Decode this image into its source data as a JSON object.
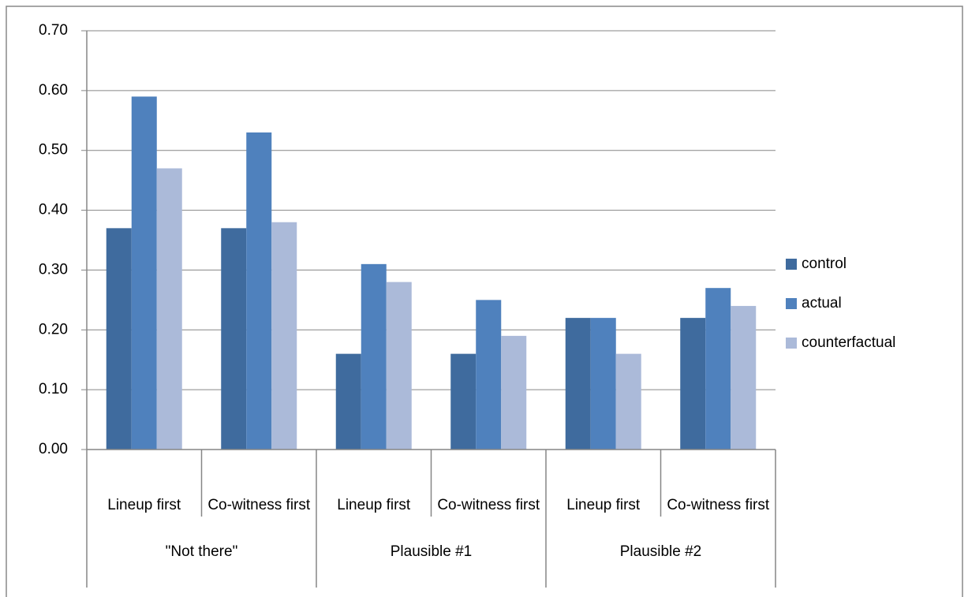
{
  "chart_data": {
    "type": "bar",
    "groups": [
      {
        "name": "\"Not there\"",
        "categories": [
          "Lineup first",
          "Co-witness first"
        ]
      },
      {
        "name": "Plausible #1",
        "categories": [
          "Lineup first",
          "Co-witness first"
        ]
      },
      {
        "name": "Plausible #2",
        "categories": [
          "Lineup first",
          "Co-witness first"
        ]
      }
    ],
    "series": [
      {
        "name": "control",
        "color": "#3f6b9e",
        "values": [
          0.37,
          0.37,
          0.16,
          0.16,
          0.22,
          0.22
        ]
      },
      {
        "name": "actual",
        "color": "#4f81bd",
        "values": [
          0.59,
          0.53,
          0.31,
          0.25,
          0.22,
          0.27
        ]
      },
      {
        "name": "counterfactual",
        "color": "#abbad9",
        "values": [
          0.47,
          0.38,
          0.28,
          0.19,
          0.16,
          0.24
        ]
      }
    ],
    "ylim": [
      0,
      0.7
    ],
    "yticks": [
      {
        "value": 0,
        "label": "0.00"
      },
      {
        "value": 0.1,
        "label": "0.10"
      },
      {
        "value": 0.2,
        "label": "0.20"
      },
      {
        "value": 0.3,
        "label": "0.30"
      },
      {
        "value": 0.4,
        "label": "0.40"
      },
      {
        "value": 0.5,
        "label": "0.50"
      },
      {
        "value": 0.6,
        "label": "0.60"
      },
      {
        "value": 0.7,
        "label": "0.70"
      }
    ],
    "grid": true,
    "legend": "right"
  }
}
